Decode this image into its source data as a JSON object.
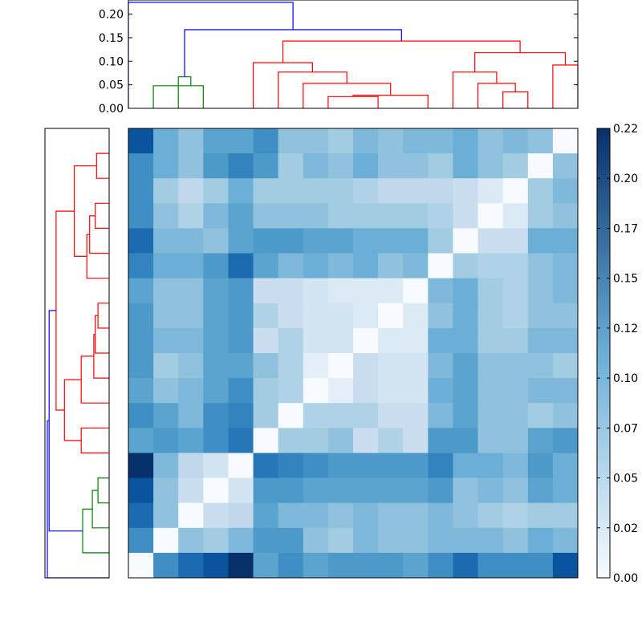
{
  "colors": {
    "above_threshold": "#0000ff",
    "cluster_a": "#ff0000",
    "cluster_b": "#008000",
    "colormap_low": "#f7fbff",
    "colormap_mid": "#6baed6",
    "colormap_high": "#08306b",
    "frame": "#000000"
  },
  "chart_data": [
    {
      "type": "dendrogram",
      "orientation": "top",
      "leaf_count": 18,
      "y_range": [
        0,
        0.23
      ],
      "y_ticks": [
        "0.00",
        "0.05",
        "0.10",
        "0.15",
        "0.20"
      ],
      "y_tick_values": [
        0.0,
        0.05,
        0.1,
        0.15,
        0.2
      ],
      "links": [
        {
          "left_pos": 0.5,
          "left_h": 0.0,
          "right_pos": 2.5,
          "right_h": 0.0,
          "h": 0.048,
          "color": "cluster_b"
        },
        {
          "left_pos": 1.5,
          "left_h": 0.0,
          "right_pos": 2.0,
          "right_h": 0.048,
          "h": 0.067,
          "color": "cluster_b"
        },
        {
          "left_pos": 7.5,
          "left_h": 0.0,
          "right_pos": 9.5,
          "right_h": 0.0,
          "h": 0.025,
          "color": "cluster_a"
        },
        {
          "left_pos": 8.5,
          "left_h": 0.025,
          "right_pos": 11.5,
          "right_h": 0.0,
          "h": 0.028,
          "color": "cluster_a"
        },
        {
          "left_pos": 10.0,
          "left_h": 0.028,
          "right_pos": 6.5,
          "right_h": 0.0,
          "h": 0.053,
          "color": "cluster_a"
        },
        {
          "left_pos": 5.5,
          "left_h": 0.0,
          "right_pos": 8.25,
          "right_h": 0.053,
          "h": 0.077,
          "color": "cluster_a"
        },
        {
          "left_pos": 4.5,
          "left_h": 0.0,
          "right_pos": 6.875,
          "right_h": 0.077,
          "h": 0.097,
          "color": "cluster_a"
        },
        {
          "left_pos": 14.5,
          "left_h": 0.0,
          "right_pos": 15.5,
          "right_h": 0.0,
          "h": 0.035,
          "color": "cluster_a"
        },
        {
          "left_pos": 13.5,
          "left_h": 0.0,
          "right_pos": 15.0,
          "right_h": 0.035,
          "h": 0.053,
          "color": "cluster_a"
        },
        {
          "left_pos": 12.5,
          "left_h": 0.0,
          "right_pos": 14.25,
          "right_h": 0.053,
          "h": 0.077,
          "color": "cluster_a"
        },
        {
          "left_pos": 16.5,
          "left_h": 0.0,
          "right_pos": 17.5,
          "right_h": 0.0,
          "h": 0.092,
          "color": "cluster_a"
        },
        {
          "left_pos": 13.375,
          "left_h": 0.077,
          "right_pos": 17.0,
          "right_h": 0.092,
          "h": 0.118,
          "color": "cluster_a"
        },
        {
          "left_pos": 5.6875,
          "left_h": 0.097,
          "right_pos": 15.1875,
          "right_h": 0.118,
          "h": 0.143,
          "color": "cluster_a"
        },
        {
          "left_pos": 1.75,
          "left_h": 0.067,
          "right_pos": 10.4375,
          "right_h": 0.143,
          "h": 0.167,
          "color": "above_threshold"
        },
        {
          "left_pos": -0.5,
          "left_h": 0.0,
          "right_pos": 6.09375,
          "right_h": 0.167,
          "h": 0.225,
          "color": "above_threshold"
        }
      ]
    },
    {
      "type": "dendrogram",
      "orientation": "left",
      "leaf_count": 18,
      "x_range": [
        0,
        0.23
      ],
      "links": [
        {
          "top_pos": 0.5,
          "top_d": 0.0,
          "bottom_pos": 1.5,
          "bottom_d": 0.0,
          "d": 0.045,
          "color": "cluster_a"
        },
        {
          "top_pos": 2.5,
          "top_d": 0.0,
          "bottom_pos": 3.5,
          "bottom_d": 0.0,
          "d": 0.05,
          "color": "cluster_a"
        },
        {
          "top_pos": 3.0,
          "top_d": 0.05,
          "bottom_pos": 4.5,
          "bottom_d": 0.0,
          "d": 0.07,
          "color": "cluster_a"
        },
        {
          "top_pos": 3.75,
          "top_d": 0.07,
          "bottom_pos": 5.5,
          "bottom_d": 0.0,
          "d": 0.08,
          "color": "cluster_a"
        },
        {
          "top_pos": 1.0,
          "top_d": 0.045,
          "bottom_pos": 4.625,
          "bottom_d": 0.08,
          "d": 0.125,
          "color": "cluster_a"
        },
        {
          "top_pos": 6.5,
          "top_d": 0.0,
          "bottom_pos": 7.5,
          "bottom_d": 0.0,
          "d": 0.04,
          "color": "cluster_a"
        },
        {
          "top_pos": 7.0,
          "top_d": 0.04,
          "bottom_pos": 8.5,
          "bottom_d": 0.0,
          "d": 0.05,
          "color": "cluster_a"
        },
        {
          "top_pos": 7.75,
          "top_d": 0.05,
          "bottom_pos": 9.5,
          "bottom_d": 0.0,
          "d": 0.055,
          "color": "cluster_a"
        },
        {
          "top_pos": 8.625,
          "top_d": 0.055,
          "bottom_pos": 10.5,
          "bottom_d": 0.0,
          "d": 0.1,
          "color": "cluster_a"
        },
        {
          "top_pos": 11.5,
          "top_d": 0.0,
          "bottom_pos": 12.5,
          "bottom_d": 0.0,
          "d": 0.1,
          "color": "cluster_a"
        },
        {
          "top_pos": 9.5625,
          "top_d": 0.1,
          "bottom_pos": 12.0,
          "bottom_d": 0.1,
          "d": 0.16,
          "color": "cluster_a"
        },
        {
          "top_pos": 2.8125,
          "top_d": 0.125,
          "bottom_pos": 10.78125,
          "bottom_d": 0.16,
          "d": 0.19,
          "color": "cluster_a"
        },
        {
          "top_pos": 13.5,
          "top_d": 0.0,
          "bottom_pos": 14.5,
          "bottom_d": 0.0,
          "d": 0.04,
          "color": "cluster_b"
        },
        {
          "top_pos": 14.0,
          "top_d": 0.04,
          "bottom_pos": 15.5,
          "bottom_d": 0.0,
          "d": 0.06,
          "color": "cluster_b"
        },
        {
          "top_pos": 14.75,
          "top_d": 0.06,
          "bottom_pos": 16.5,
          "bottom_d": 0.0,
          "d": 0.095,
          "color": "cluster_b"
        },
        {
          "top_pos": 6.796875,
          "top_d": 0.19,
          "bottom_pos": 15.625,
          "bottom_d": 0.095,
          "d": 0.215,
          "color": "above_threshold"
        },
        {
          "top_pos": 11.2109375,
          "top_d": 0.215,
          "bottom_pos": 17.5,
          "bottom_d": 0.0,
          "d": 0.285,
          "color": "above_threshold"
        }
      ]
    },
    {
      "type": "heatmap",
      "rows": 18,
      "cols": 18,
      "value_range": [
        0,
        0.22
      ],
      "colorbar_ticks": [
        "0.00",
        "0.02",
        "0.05",
        "0.07",
        "0.10",
        "0.12",
        "0.15",
        "0.17",
        "0.20",
        "0.22"
      ],
      "colorbar_tick_values": [
        0.0,
        0.025,
        0.05,
        0.075,
        0.1,
        0.125,
        0.15,
        0.175,
        0.2,
        0.225
      ],
      "matrix": [
        [
          0.19,
          0.11,
          0.09,
          0.12,
          0.12,
          0.14,
          0.09,
          0.09,
          0.08,
          0.1,
          0.09,
          0.1,
          0.1,
          0.11,
          0.09,
          0.1,
          0.09,
          0.0
        ],
        [
          0.14,
          0.11,
          0.09,
          0.13,
          0.15,
          0.13,
          0.08,
          0.1,
          0.09,
          0.11,
          0.09,
          0.09,
          0.08,
          0.11,
          0.09,
          0.08,
          0.0,
          0.09
        ],
        [
          0.14,
          0.08,
          0.06,
          0.08,
          0.11,
          0.08,
          0.08,
          0.08,
          0.08,
          0.07,
          0.06,
          0.06,
          0.06,
          0.05,
          0.03,
          0.0,
          0.08,
          0.1
        ],
        [
          0.14,
          0.09,
          0.07,
          0.1,
          0.12,
          0.09,
          0.09,
          0.09,
          0.08,
          0.08,
          0.08,
          0.08,
          0.07,
          0.05,
          0.0,
          0.03,
          0.08,
          0.09
        ],
        [
          0.17,
          0.1,
          0.1,
          0.09,
          0.12,
          0.13,
          0.13,
          0.12,
          0.12,
          0.11,
          0.11,
          0.11,
          0.08,
          0.0,
          0.05,
          0.05,
          0.11,
          0.11
        ],
        [
          0.15,
          0.11,
          0.11,
          0.13,
          0.17,
          0.12,
          0.1,
          0.11,
          0.1,
          0.11,
          0.09,
          0.1,
          0.0,
          0.08,
          0.07,
          0.07,
          0.09,
          0.1
        ],
        [
          0.12,
          0.09,
          0.09,
          0.12,
          0.13,
          0.05,
          0.05,
          0.04,
          0.03,
          0.03,
          0.03,
          0.0,
          0.1,
          0.11,
          0.08,
          0.07,
          0.09,
          0.1
        ],
        [
          0.13,
          0.09,
          0.09,
          0.12,
          0.13,
          0.07,
          0.05,
          0.04,
          0.04,
          0.03,
          0.0,
          0.03,
          0.09,
          0.11,
          0.08,
          0.07,
          0.09,
          0.09
        ],
        [
          0.13,
          0.1,
          0.1,
          0.12,
          0.13,
          0.05,
          0.07,
          0.04,
          0.04,
          0.0,
          0.03,
          0.03,
          0.11,
          0.11,
          0.08,
          0.08,
          0.1,
          0.1
        ],
        [
          0.13,
          0.08,
          0.09,
          0.12,
          0.12,
          0.09,
          0.07,
          0.02,
          0.0,
          0.05,
          0.04,
          0.04,
          0.1,
          0.12,
          0.09,
          0.09,
          0.09,
          0.08
        ],
        [
          0.12,
          0.09,
          0.1,
          0.12,
          0.14,
          0.08,
          0.07,
          0.0,
          0.02,
          0.05,
          0.04,
          0.04,
          0.11,
          0.12,
          0.09,
          0.09,
          0.1,
          0.1
        ],
        [
          0.14,
          0.12,
          0.1,
          0.14,
          0.15,
          0.08,
          0.0,
          0.07,
          0.07,
          0.07,
          0.05,
          0.05,
          0.1,
          0.12,
          0.09,
          0.09,
          0.08,
          0.09
        ],
        [
          0.12,
          0.13,
          0.12,
          0.14,
          0.16,
          0.0,
          0.08,
          0.08,
          0.09,
          0.05,
          0.07,
          0.05,
          0.13,
          0.13,
          0.09,
          0.09,
          0.12,
          0.13
        ],
        [
          0.22,
          0.1,
          0.06,
          0.04,
          0.0,
          0.16,
          0.15,
          0.14,
          0.13,
          0.13,
          0.13,
          0.13,
          0.15,
          0.11,
          0.11,
          0.1,
          0.13,
          0.11
        ],
        [
          0.19,
          0.09,
          0.05,
          0.0,
          0.04,
          0.13,
          0.13,
          0.12,
          0.12,
          0.12,
          0.12,
          0.12,
          0.13,
          0.09,
          0.1,
          0.09,
          0.12,
          0.11
        ],
        [
          0.17,
          0.09,
          0.0,
          0.05,
          0.06,
          0.12,
          0.1,
          0.1,
          0.09,
          0.1,
          0.09,
          0.09,
          0.1,
          0.09,
          0.08,
          0.07,
          0.08,
          0.08
        ],
        [
          0.14,
          0.0,
          0.09,
          0.08,
          0.1,
          0.13,
          0.13,
          0.09,
          0.08,
          0.1,
          0.09,
          0.09,
          0.1,
          0.1,
          0.1,
          0.09,
          0.11,
          0.1
        ],
        [
          0.0,
          0.14,
          0.17,
          0.19,
          0.22,
          0.12,
          0.14,
          0.12,
          0.13,
          0.13,
          0.13,
          0.12,
          0.14,
          0.17,
          0.14,
          0.14,
          0.14,
          0.19
        ]
      ]
    }
  ]
}
